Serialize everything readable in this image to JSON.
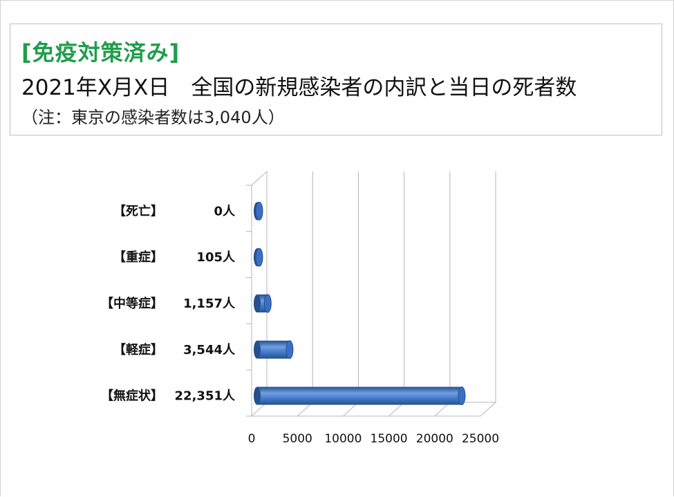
{
  "header": {
    "tag": "[免疫対策済み]",
    "title": "2021年X月X日　全国の新規感染者の内訳と当日の死者数",
    "note": "（注：東京の感染者数は3,040人）"
  },
  "colors": {
    "tag": "#1f9e4b",
    "bar_light": "#6f9fe0",
    "bar_mid": "#3a6fc4",
    "bar_dark": "#24508e",
    "grid": "#b5b5b5"
  },
  "chart_data": {
    "type": "bar",
    "orientation": "horizontal",
    "style": "3d-cylinder",
    "categories": [
      "【死亡】",
      "【重症】",
      "【中等症】",
      "【軽症】",
      "【無症状】"
    ],
    "value_labels": [
      "0人",
      "105人",
      "1,157人",
      "3,544人",
      "22,351人"
    ],
    "values": [
      0,
      105,
      1157,
      3544,
      22351
    ],
    "xlim": [
      0,
      25000
    ],
    "x_ticks": [
      "0",
      "5000",
      "10000",
      "15000",
      "20000",
      "25000"
    ],
    "grid": true,
    "legend": "none"
  }
}
